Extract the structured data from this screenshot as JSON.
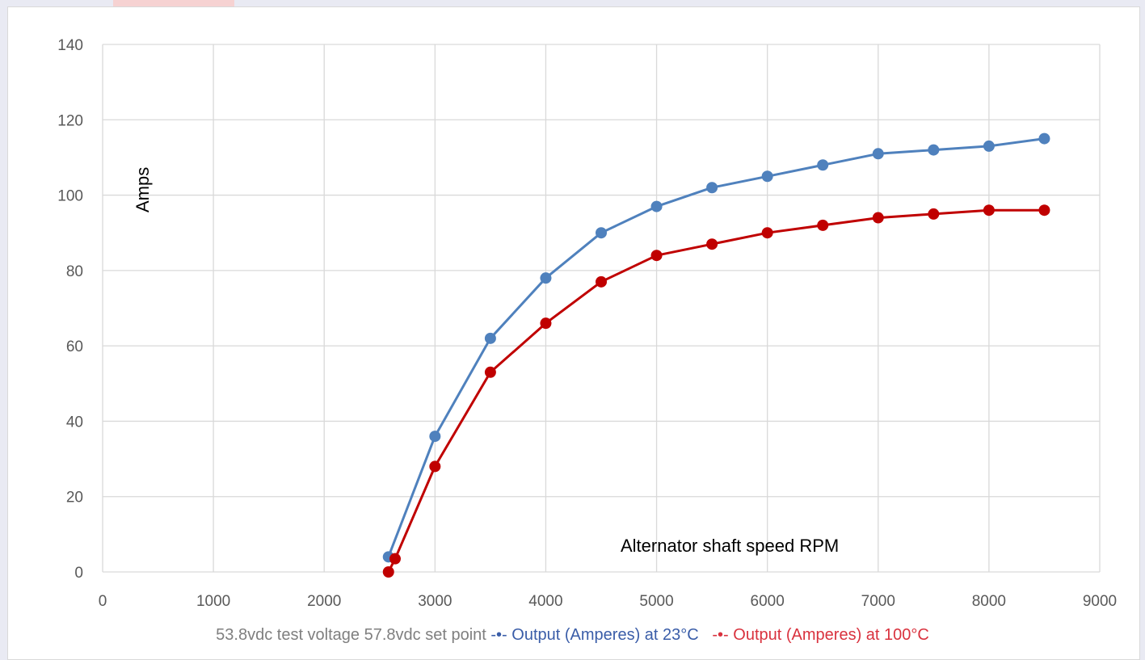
{
  "chart_data": {
    "type": "line",
    "title": "",
    "xlabel": "Alternator shaft speed RPM",
    "ylabel": "Amps",
    "xlim": [
      0,
      9000
    ],
    "ylim": [
      0,
      140
    ],
    "x_ticks": [
      0,
      1000,
      2000,
      3000,
      4000,
      5000,
      6000,
      7000,
      8000,
      9000
    ],
    "y_ticks": [
      0,
      20,
      40,
      60,
      80,
      100,
      120,
      140
    ],
    "grid": true,
    "legend_position": "bottom",
    "legend_note": "53.8vdc test voltage  57.8vdc set point",
    "series": [
      {
        "name": "Output (Amperes) at 23°C",
        "color": "#4f81bd",
        "legend_color": "#3a5da8",
        "marker": "-•-",
        "x": [
          2580,
          3000,
          3500,
          4000,
          4500,
          5000,
          5500,
          6000,
          6500,
          7000,
          7500,
          8000,
          8500
        ],
        "y": [
          4,
          36,
          62,
          78,
          90,
          97,
          102,
          105,
          108,
          111,
          112,
          113,
          115
        ]
      },
      {
        "name": "Output (Amperes) at 100°C",
        "color": "#c00000",
        "legend_color": "#d9323e",
        "marker": "-•-",
        "x": [
          2580,
          2640,
          3000,
          3500,
          4000,
          4500,
          5000,
          5500,
          6000,
          6500,
          7000,
          7500,
          8000,
          8500
        ],
        "y": [
          0,
          3.5,
          28,
          53,
          66,
          77,
          84,
          87,
          90,
          92,
          94,
          95,
          96,
          96
        ]
      }
    ]
  }
}
